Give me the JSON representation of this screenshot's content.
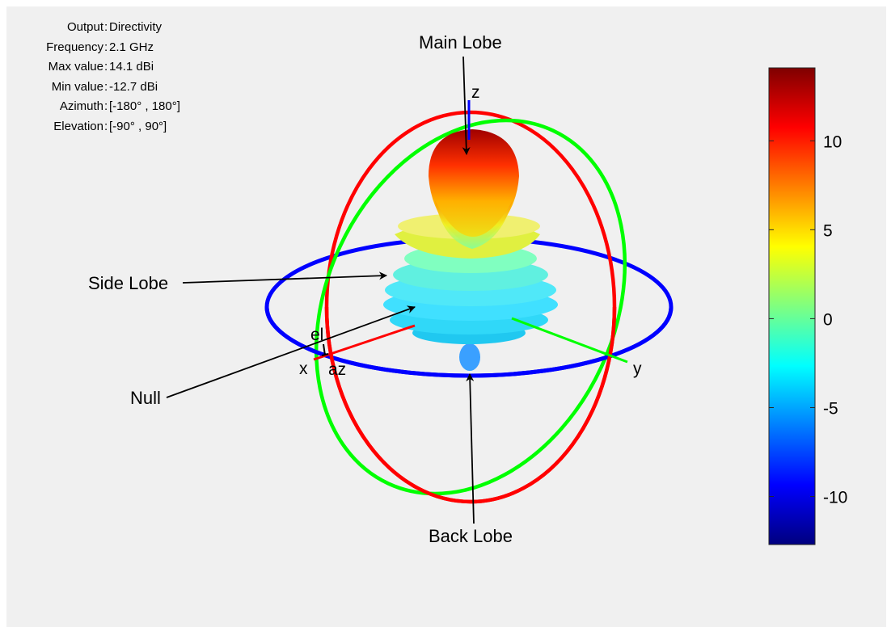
{
  "info": [
    {
      "key": "Output",
      "value": "Directivity"
    },
    {
      "key": "Frequency",
      "value": "2.1 GHz"
    },
    {
      "key": "Max value",
      "value": "14.1 dBi"
    },
    {
      "key": "Min value",
      "value": "-12.7 dBi"
    },
    {
      "key": "Azimuth",
      "value": "[-180° , 180°]"
    },
    {
      "key": "Elevation",
      "value": "[-90° , 90°]"
    }
  ],
  "annotations": {
    "main_lobe": "Main Lobe",
    "side_lobe": "Side Lobe",
    "null": "Null",
    "back_lobe": "Back Lobe"
  },
  "axes": {
    "x": "x",
    "y": "y",
    "z": "z",
    "az": "az",
    "el": "el"
  },
  "colorbar": {
    "min": -12.7,
    "max": 14.1,
    "ticks": [
      10,
      5,
      0,
      -5,
      -10
    ],
    "colormap": "jet"
  },
  "colors": {
    "azimuth_ring": "#0000ff",
    "elevation_ring_xz": "#ff0000",
    "elevation_ring_yz": "#00ff00",
    "background": "#f0f0f0"
  }
}
